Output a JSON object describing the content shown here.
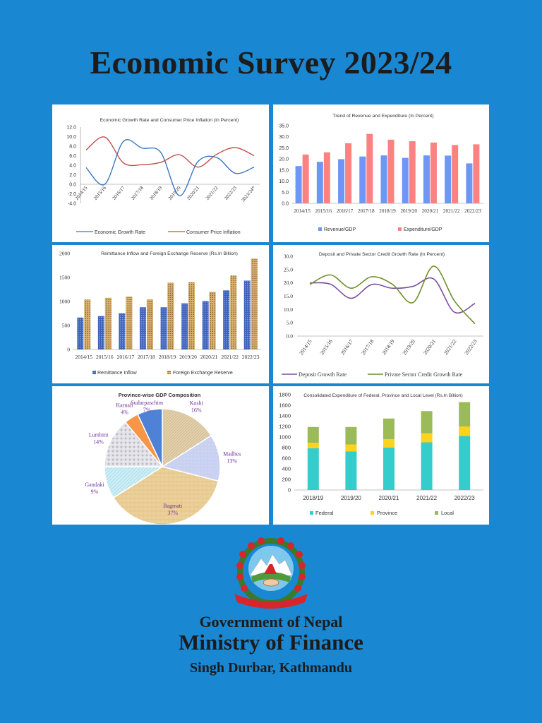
{
  "document": {
    "title": "Economic Survey 2023/24",
    "footer": {
      "line1": "Government of Nepal",
      "line2": "Ministry of Finance",
      "line3": "Singh Durbar, Kathmandu"
    },
    "emblem_text": "जननी जन्मभूमिश्च स्वर्गादपि गरीयसी"
  },
  "colors": {
    "background": "#1a87d2",
    "blue": "#3a75c4",
    "red": "#c0504d",
    "bar_blue": "#6e96f5",
    "bar_pink": "#fa8282",
    "purple": "#7c4f9e",
    "olive": "#6f8f2e",
    "teal": "#35cccc",
    "yellow": "#ffd21e",
    "green": "#9bbb59"
  },
  "chart_data": [
    {
      "id": "growth-inflation",
      "type": "line",
      "title": "Economic Growth Rate and Consumer Price Inflation (In Percent)",
      "categories": [
        "2014/15",
        "2015/16",
        "2016/17",
        "2017/18",
        "2018/19",
        "2019/20",
        "2020/21",
        "2021/22",
        "2022/23",
        "2023/24*"
      ],
      "series": [
        {
          "name": "Economic Growth Rate",
          "values": [
            3.5,
            0.0,
            9.0,
            7.6,
            6.7,
            -2.4,
            4.8,
            5.6,
            2.3,
            3.6
          ],
          "color": "#3a75c4"
        },
        {
          "name": "Consumer Price Inflation",
          "values": [
            7.2,
            9.9,
            4.5,
            4.1,
            4.6,
            6.2,
            3.6,
            6.3,
            7.7,
            6.0
          ],
          "color": "#c0504d"
        }
      ],
      "yticks": [
        "12.0",
        "10.0",
        "8.0",
        "6.0",
        "4.0",
        "2.0",
        "0.0",
        "-2.0",
        "-4.0"
      ],
      "ylim": [
        -4,
        12
      ],
      "legend": "bottom"
    },
    {
      "id": "revenue-expenditure",
      "type": "bar",
      "title": "Trend of Revenue and Expenditure (In Percent)",
      "categories": [
        "2014/15",
        "2015/16",
        "2016/17",
        "2017/18",
        "2018/19",
        "2019/20",
        "2020/21",
        "2021/22",
        "2022/23"
      ],
      "series": [
        {
          "name": "Revenue/GDP",
          "values": [
            16.8,
            18.7,
            19.9,
            21.1,
            21.6,
            20.5,
            21.6,
            21.5,
            18.0
          ],
          "color": "#6e96f5"
        },
        {
          "name": "Expenditure/GDP",
          "values": [
            22.0,
            23.0,
            27.1,
            31.3,
            28.7,
            28.0,
            27.4,
            26.3,
            26.6
          ],
          "color": "#fa8282"
        }
      ],
      "yticks": [
        "35.0",
        "30.0",
        "25.0",
        "20.0",
        "15.0",
        "10.0",
        "5.0",
        "0.0"
      ],
      "ylim": [
        0,
        35
      ],
      "legend": "bottom"
    },
    {
      "id": "remittance-reserve",
      "type": "bar",
      "title": "Remittance Inflow and Foreign Exchange Reserve (Rs.In Billion)",
      "categories": [
        "2014/15",
        "2015/16",
        "2016/17",
        "2017/18",
        "2018/19",
        "2019/20",
        "2020/21",
        "2021/22",
        "2022/23"
      ],
      "series": [
        {
          "name": "Remittance Inflow",
          "values": [
            665,
            695,
            755,
            879,
            879,
            961,
            1007,
            1231,
            1434
          ],
          "color": "#3d62b8"
        },
        {
          "name": "Foreign Exchange Reserve",
          "values": [
            1040,
            1076,
            1100,
            1040,
            1390,
            1400,
            1200,
            1540,
            1890
          ],
          "color": "#d9b070"
        }
      ],
      "yticks": [
        "2000",
        "1500",
        "1000",
        "500",
        "0"
      ],
      "ylim": [
        0,
        2000
      ],
      "legend": "bottom"
    },
    {
      "id": "deposit-credit",
      "type": "line",
      "title": "Deposit and Private Sector Credit Growth Rate (In Percent)",
      "categories": [
        "2014/15",
        "2015/16",
        "2016/17",
        "2017/18",
        "2018/19",
        "2019/20",
        "2020/21",
        "2021/22",
        "2022/23"
      ],
      "series": [
        {
          "name": "Deposit Growth Rate",
          "values": [
            20.0,
            19.5,
            14.2,
            19.4,
            18.0,
            18.7,
            21.5,
            9.0,
            12.3
          ],
          "color": "#7c4f9e"
        },
        {
          "name": "Private Sector Credit Growth Rate",
          "values": [
            19.4,
            23.0,
            18.0,
            22.3,
            19.5,
            12.6,
            26.3,
            13.3,
            4.6
          ],
          "color": "#6f8f2e"
        }
      ],
      "yticks": [
        "30.0",
        "25.0",
        "20.0",
        "15.0",
        "10.0",
        "5.0",
        "0.0"
      ],
      "ylim": [
        0,
        30
      ],
      "legend": "bottom"
    },
    {
      "id": "province-gdp",
      "type": "pie",
      "title": "Province-wise GDP Composition",
      "slices": [
        {
          "label": "Koshi",
          "pct_label": "16%",
          "value": 16,
          "color": "#d8c49e"
        },
        {
          "label": "Madhes",
          "pct_label": "13%",
          "value": 13,
          "color": "#b9c8ef"
        },
        {
          "label": "Bagmati",
          "pct_label": "37%",
          "value": 37,
          "color": "#e8cb90"
        },
        {
          "label": "Gandaki",
          "pct_label": "9%",
          "value": 9,
          "color": "#bfe6ef"
        },
        {
          "label": "Lumbini",
          "pct_label": "14%",
          "value": 14,
          "color": "#d4d4da"
        },
        {
          "label": "Karnali",
          "pct_label": "4%",
          "value": 4,
          "color": "#f79646"
        },
        {
          "label": "Sudurpaschim",
          "pct_label": "7%",
          "value": 7,
          "color": "#4f81d6"
        }
      ],
      "label_color": "#7030a0"
    },
    {
      "id": "consolidated-expenditure",
      "type": "bar",
      "stacked": true,
      "title": "Consolidated Expenditure of  Federal, Province and Local Level (Rs.In Billion)",
      "categories": [
        "2018/19",
        "2019/20",
        "2020/21",
        "2021/22",
        "2022/23"
      ],
      "series": [
        {
          "name": "Federal",
          "values": [
            790,
            730,
            800,
            900,
            1020
          ],
          "color": "#35cccc"
        },
        {
          "name": "Province",
          "values": [
            100,
            130,
            160,
            170,
            180
          ],
          "color": "#ffd21e"
        },
        {
          "name": "Local",
          "values": [
            300,
            330,
            390,
            420,
            460
          ],
          "color": "#9bbb59"
        }
      ],
      "yticks": [
        "1800",
        "1600",
        "1400",
        "1200",
        "1000",
        "800",
        "600",
        "400",
        "200",
        "0"
      ],
      "ylim": [
        0,
        1800
      ],
      "legend": "bottom"
    }
  ]
}
